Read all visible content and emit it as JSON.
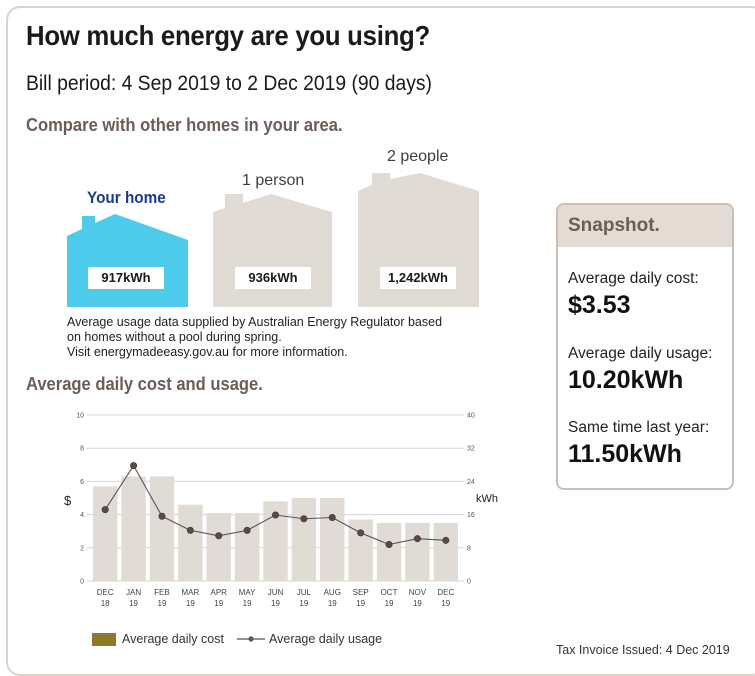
{
  "header": {
    "title": "How much energy are you using?",
    "bill_period": "Bill period: 4 Sep 2019 to 2 Dec 2019 (90 days)"
  },
  "compare": {
    "heading": "Compare with other homes in your area.",
    "your_home_label": "Your home",
    "your_home_value": "917kWh",
    "one_person_label": "1 person",
    "one_person_value": "936kWh",
    "two_people_label": "2 people",
    "two_people_value": "1,242kWh",
    "note_line1": "Average usage data supplied by Australian Energy Regulator based",
    "note_line2": "on homes without a pool during spring.",
    "note_line3": "Visit energymadeeasy.gov.au for more information.",
    "colors": {
      "your_home": "#4dcbea",
      "others": "#e1dbd6"
    }
  },
  "snapshot": {
    "heading": "Snapshot.",
    "avg_cost_label": "Average daily cost:",
    "avg_cost_value": "$3.53",
    "avg_usage_label": "Average daily usage:",
    "avg_usage_value": "10.20kWh",
    "last_year_label": "Same time last year:",
    "last_year_value": "11.50kWh"
  },
  "chart_heading": "Average daily cost and usage.",
  "chart_data": {
    "type": "bar",
    "categories": [
      [
        "DEC",
        "18"
      ],
      [
        "JAN",
        "19"
      ],
      [
        "FEB",
        "19"
      ],
      [
        "MAR",
        "19"
      ],
      [
        "APR",
        "19"
      ],
      [
        "MAY",
        "19"
      ],
      [
        "JUN",
        "19"
      ],
      [
        "JUL",
        "19"
      ],
      [
        "AUG",
        "19"
      ],
      [
        "SEP",
        "19"
      ],
      [
        "OCT",
        "19"
      ],
      [
        "NOV",
        "19"
      ],
      [
        "DEC",
        "19"
      ]
    ],
    "series": [
      {
        "name": "Average daily cost",
        "type": "bar",
        "axis": "left",
        "color": "#e1dbd6",
        "values": [
          5.7,
          6.3,
          6.3,
          4.6,
          4.1,
          4.1,
          4.8,
          5.0,
          5.0,
          3.7,
          3.5,
          3.5,
          3.5
        ]
      },
      {
        "name": "Average daily usage",
        "type": "line",
        "axis": "right",
        "color": "#555555",
        "values": [
          17.2,
          27.8,
          15.6,
          12.2,
          10.9,
          12.2,
          15.9,
          15.0,
          15.3,
          11.6,
          8.8,
          10.2,
          9.8
        ]
      }
    ],
    "y_left": {
      "label": "$",
      "ticks": [
        0,
        2,
        4,
        6,
        8,
        10
      ],
      "range": [
        0,
        10
      ]
    },
    "y_right": {
      "label": "kWh",
      "ticks": [
        0,
        8,
        16,
        24,
        32,
        40
      ],
      "range": [
        0,
        40
      ]
    },
    "grid": true,
    "legend": [
      {
        "label": "Average daily cost",
        "color": "#8f7a2a"
      },
      {
        "label": "Average daily usage"
      }
    ]
  },
  "footer": {
    "tax_invoice": "Tax Invoice Issued: 4 Dec 2019"
  }
}
